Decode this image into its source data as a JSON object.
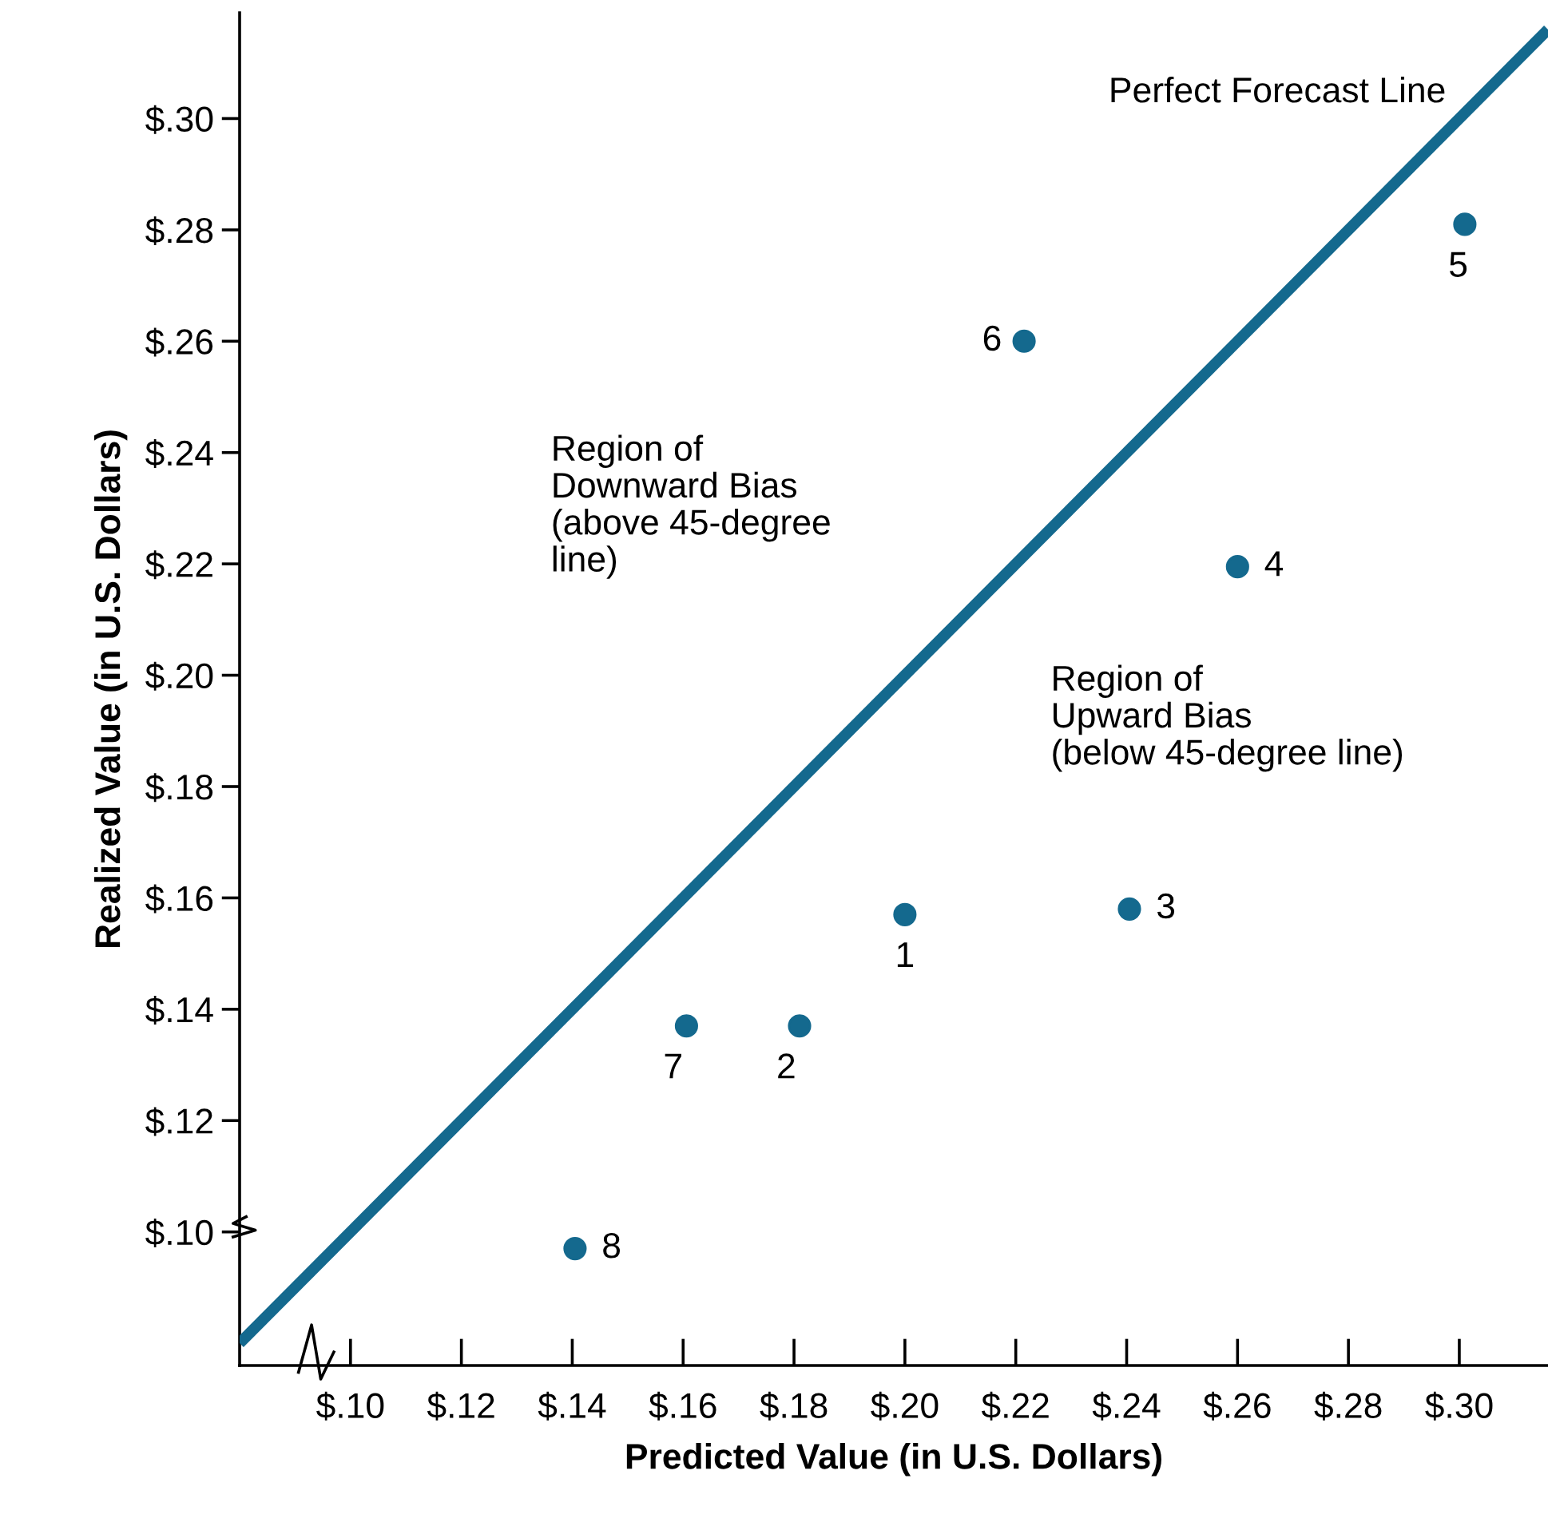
{
  "chart_data": {
    "type": "scatter",
    "xlabel": "Predicted Value (in U.S. Dollars)",
    "ylabel": "Realized Value (in U.S. Dollars)",
    "xlim": [
      0.08,
      0.316
    ],
    "ylim": [
      0.076,
      0.319
    ],
    "xticks": [
      {
        "value": 0.1,
        "label": "$.10"
      },
      {
        "value": 0.12,
        "label": "$.12"
      },
      {
        "value": 0.14,
        "label": "$.14"
      },
      {
        "value": 0.16,
        "label": "$.16"
      },
      {
        "value": 0.18,
        "label": "$.18"
      },
      {
        "value": 0.2,
        "label": "$.20"
      },
      {
        "value": 0.22,
        "label": "$.22"
      },
      {
        "value": 0.24,
        "label": "$.24"
      },
      {
        "value": 0.26,
        "label": "$.26"
      },
      {
        "value": 0.28,
        "label": "$.28"
      },
      {
        "value": 0.3,
        "label": "$.30"
      }
    ],
    "yticks": [
      {
        "value": 0.1,
        "label": "$.10"
      },
      {
        "value": 0.12,
        "label": "$.12"
      },
      {
        "value": 0.14,
        "label": "$.14"
      },
      {
        "value": 0.16,
        "label": "$.16"
      },
      {
        "value": 0.18,
        "label": "$.18"
      },
      {
        "value": 0.2,
        "label": "$.20"
      },
      {
        "value": 0.22,
        "label": "$.22"
      },
      {
        "value": 0.24,
        "label": "$.24"
      },
      {
        "value": 0.26,
        "label": "$.26"
      },
      {
        "value": 0.28,
        "label": "$.28"
      },
      {
        "value": 0.3,
        "label": "$.30"
      }
    ],
    "grid": false,
    "series": [
      {
        "type": "line",
        "color": "#14698e",
        "x": [
          0.08,
          0.316
        ],
        "values": [
          0.08,
          0.316
        ]
      },
      {
        "marker": "circle",
        "color": "#14698e",
        "x": [
          0.2,
          0.181,
          0.2405,
          0.26,
          0.301,
          0.2215,
          0.1606,
          0.1405
        ],
        "values": [
          0.157,
          0.137,
          0.158,
          0.2195,
          0.281,
          0.26,
          0.137,
          0.097
        ]
      }
    ],
    "annotations": [
      {
        "text": "1",
        "x": 0.2,
        "y": 0.157
      },
      {
        "text": "2",
        "x": 0.181,
        "y": 0.137
      },
      {
        "text": "3",
        "x": 0.2405,
        "y": 0.158
      },
      {
        "text": "4",
        "x": 0.26,
        "y": 0.2195
      },
      {
        "text": "5",
        "x": 0.301,
        "y": 0.281
      },
      {
        "text": "6",
        "x": 0.2215,
        "y": 0.26
      },
      {
        "text": "7",
        "x": 0.1606,
        "y": 0.137
      },
      {
        "text": "8",
        "x": 0.1405,
        "y": 0.097
      },
      {
        "text": "Perfect Forecast Line",
        "x": 0.3,
        "y": 0.3
      },
      "Region of\nDownward Bias\n(above 45-degree\nline)",
      "Region of\nUpward Bias\n(below 45-degree line)"
    ]
  }
}
